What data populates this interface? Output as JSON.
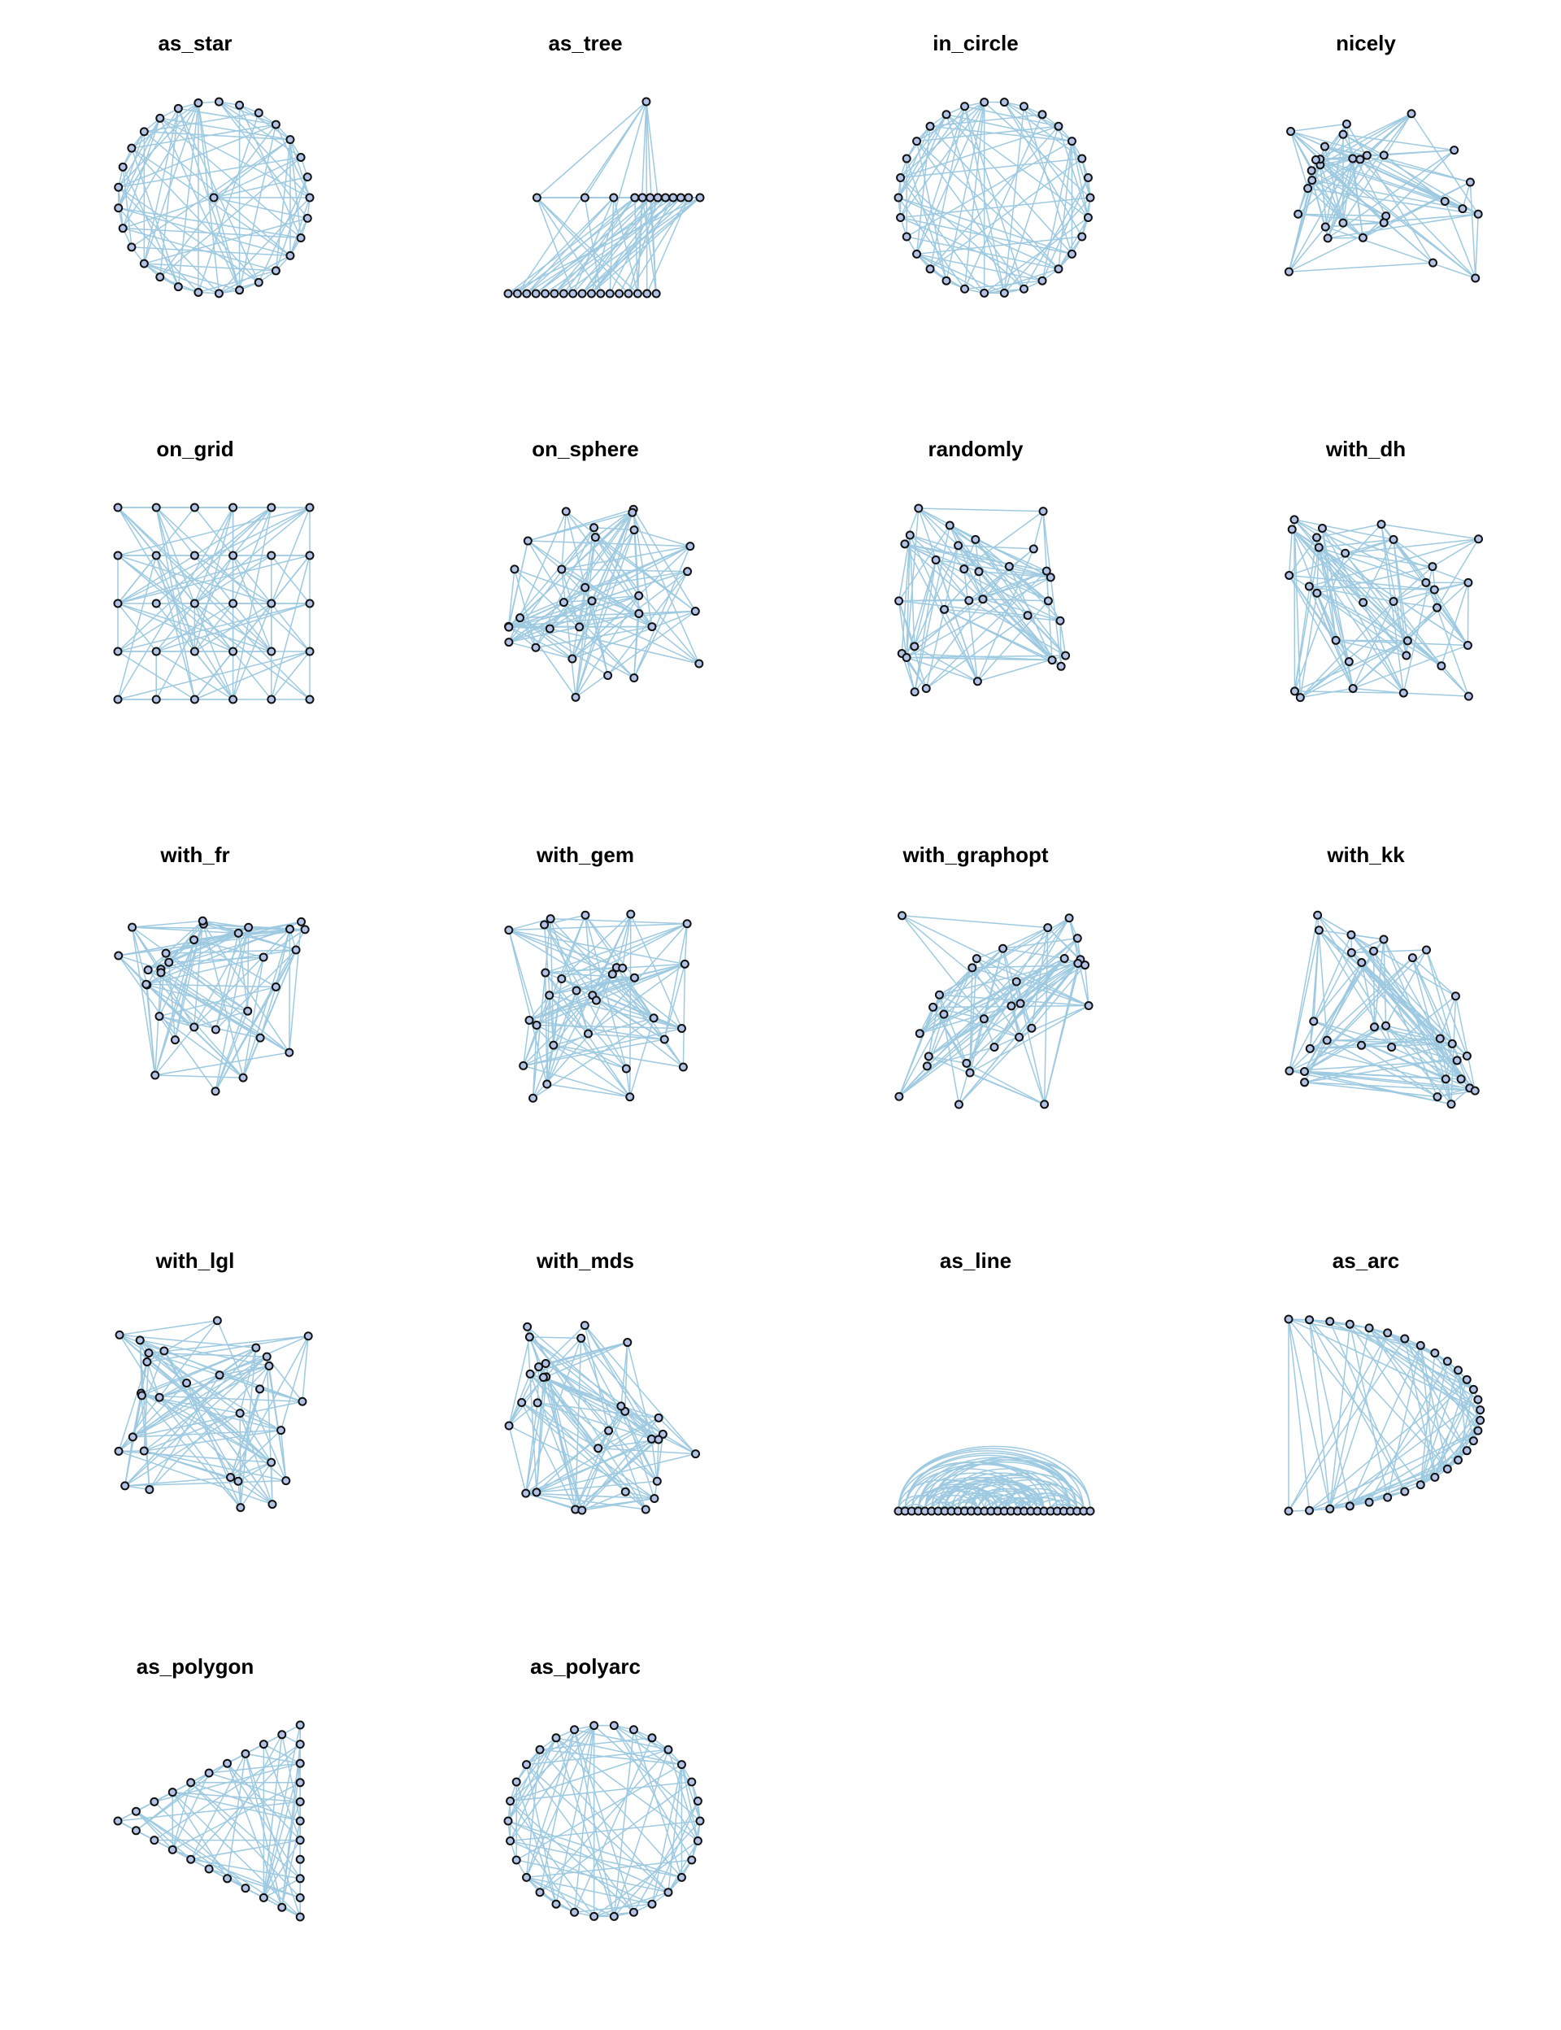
{
  "figure": {
    "panels": [
      {
        "title": "as_star",
        "layout": "star"
      },
      {
        "title": "as_tree",
        "layout": "tree"
      },
      {
        "title": "in_circle",
        "layout": "circle"
      },
      {
        "title": "nicely",
        "layout": "random"
      },
      {
        "title": "on_grid",
        "layout": "grid"
      },
      {
        "title": "on_sphere",
        "layout": "random"
      },
      {
        "title": "randomly",
        "layout": "random"
      },
      {
        "title": "with_dh",
        "layout": "random"
      },
      {
        "title": "with_fr",
        "layout": "random"
      },
      {
        "title": "with_gem",
        "layout": "random"
      },
      {
        "title": "with_graphopt",
        "layout": "random"
      },
      {
        "title": "with_kk",
        "layout": "random"
      },
      {
        "title": "with_lgl",
        "layout": "random"
      },
      {
        "title": "with_mds",
        "layout": "random"
      },
      {
        "title": "as_line",
        "layout": "line"
      },
      {
        "title": "as_arc",
        "layout": "arc"
      },
      {
        "title": "as_polygon",
        "layout": "polygon"
      },
      {
        "title": "as_polyarc",
        "layout": "circle"
      }
    ],
    "colors": {
      "edge": "#9ecae1",
      "node_fill": "#b3c3e6",
      "node_stroke": "#111111"
    },
    "node_count": 30
  }
}
